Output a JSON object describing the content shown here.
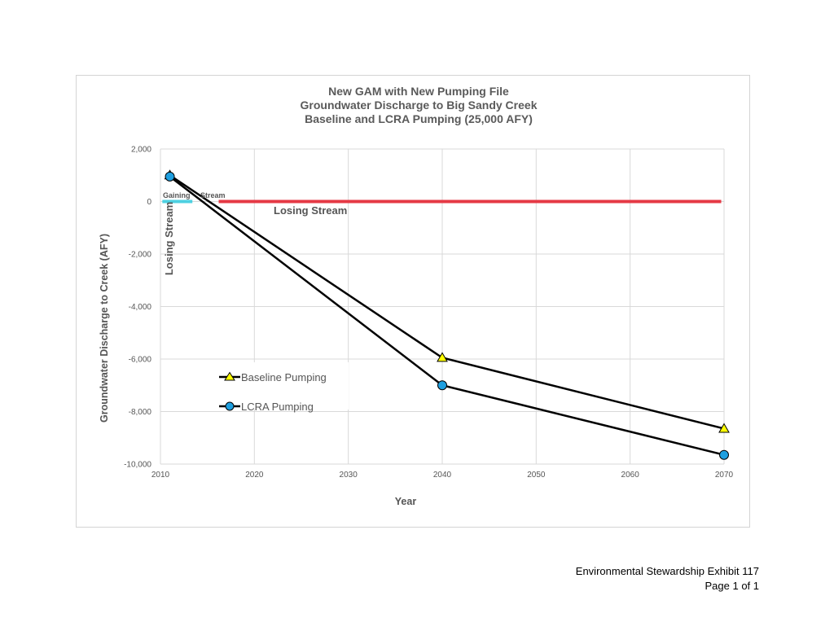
{
  "chart_data": {
    "type": "line",
    "title_lines": [
      "New GAM with New Pumping File",
      "Groundwater Discharge to Big Sandy Creek",
      "Baseline and LCRA Pumping (25,000 AFY)"
    ],
    "xlabel": "Year",
    "ylabel": "Groundwater Discharge to Creek (AFY)",
    "xlim": [
      2010,
      2070
    ],
    "ylim": [
      -10000,
      2000
    ],
    "xticks": [
      2010,
      2020,
      2030,
      2040,
      2050,
      2060,
      2070
    ],
    "yticks": [
      2000,
      0,
      -2000,
      -4000,
      -6000,
      -8000,
      -10000
    ],
    "ytick_labels": [
      "2,000",
      "0",
      "-2,000",
      "-4,000",
      "-6,000",
      "-8,000",
      "-10,000"
    ],
    "xtick_labels": [
      "2010",
      "2020",
      "2030",
      "2040",
      "2050",
      "2060",
      "2070"
    ],
    "grid": true,
    "series": [
      {
        "name": "Baseline Pumping",
        "marker": "triangle",
        "marker_color": "#ffff00",
        "x": [
          2011,
          2040,
          2070
        ],
        "y": [
          1000,
          -5950,
          -8650
        ]
      },
      {
        "name": "LCRA Pumping",
        "marker": "circle",
        "marker_color": "#1e9fe0",
        "x": [
          2011,
          2040,
          2070
        ],
        "y": [
          950,
          -7000,
          -9650
        ]
      }
    ],
    "reference_lines": [
      {
        "label": "Gaining Stream",
        "color": "#4dd0e1",
        "x": [
          2010.2,
          2013.4
        ],
        "y": 0
      },
      {
        "label": "Losing Stream",
        "color": "#e53945",
        "x": [
          2016.2,
          2069.7
        ],
        "y": 0
      }
    ],
    "annotations": {
      "gaining": "Gaining",
      "stream": "Stream",
      "losing_stream_h": "Losing Stream",
      "losing_stream_v": "Losing Stream"
    },
    "legend_placement": "lower-left"
  },
  "footer": {
    "line1": "Environmental Stewardship Exhibit 117",
    "line2": "Page 1 of 1"
  }
}
